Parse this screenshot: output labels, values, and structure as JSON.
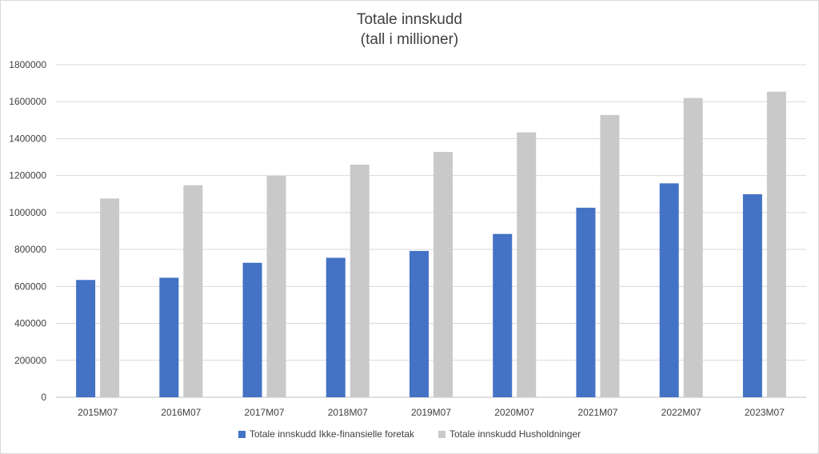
{
  "chart_data": {
    "type": "bar",
    "title": "Totale innskudd",
    "subtitle": "(tall i millioner)",
    "categories": [
      "2015M07",
      "2016M07",
      "2017M07",
      "2018M07",
      "2019M07",
      "2020M07",
      "2021M07",
      "2022M07",
      "2023M07"
    ],
    "series": [
      {
        "name": "Totale innskudd Ikke-finansielle foretak",
        "color": "#4472c4",
        "values": [
          635000,
          647000,
          728000,
          755000,
          792000,
          884000,
          1026000,
          1158000,
          1099000
        ]
      },
      {
        "name": "Totale innskudd Husholdninger",
        "color": "#c9c9c9",
        "values": [
          1076000,
          1148000,
          1198000,
          1259000,
          1328000,
          1434000,
          1528000,
          1620000,
          1654000
        ]
      }
    ],
    "yticks": [
      0,
      200000,
      400000,
      600000,
      800000,
      1000000,
      1200000,
      1400000,
      1600000,
      1800000
    ],
    "ylim": [
      0,
      1800000
    ],
    "grid": true,
    "legend_position": "bottom"
  }
}
